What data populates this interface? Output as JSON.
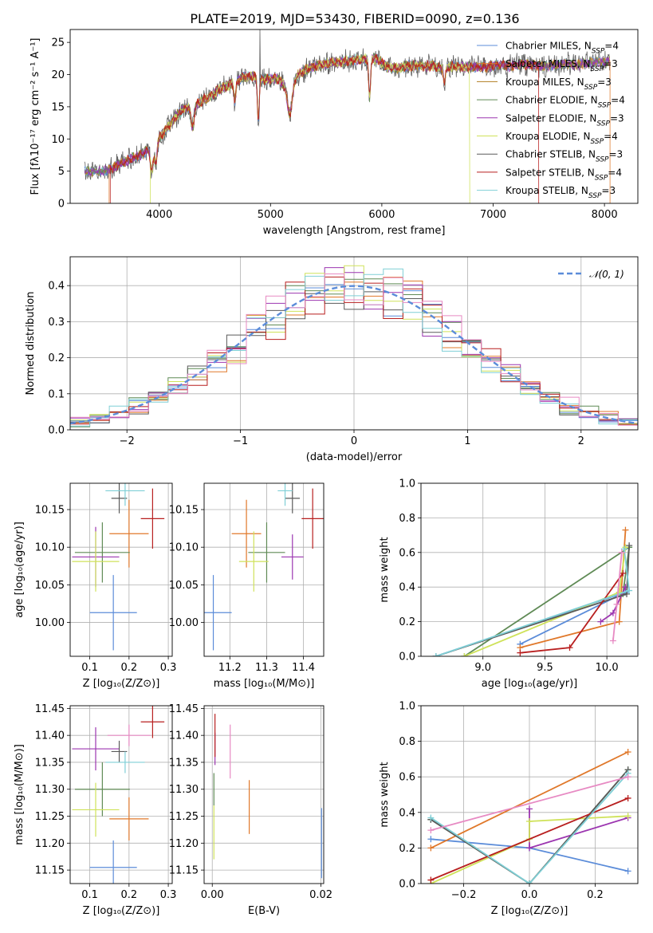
{
  "figure": {
    "title": "PLATE=2019, MJD=53430, FIBERID=0090, z=0.136"
  },
  "colors": {
    "models": [
      "#5b8cd9",
      "#e0782a",
      "#b07d20",
      "#5f8a55",
      "#9c36b0",
      "#cfe25a",
      "#5a5a5a",
      "#b81f1f",
      "#7fcfd6"
    ],
    "extra": [
      "#e78ac3"
    ],
    "grid": "#b0b0b0",
    "gauss": "#5b8cd9"
  },
  "chart_data": [
    {
      "id": "spectrum",
      "type": "line",
      "xlabel": "wavelength [Angstrom, rest frame]",
      "ylabel": "Flux [fλ10⁻¹⁷ erg cm⁻² s⁻¹ A⁻¹]",
      "xlim": [
        3200,
        8300
      ],
      "ylim": [
        0,
        27
      ],
      "xticks": [
        4000,
        5000,
        6000,
        7000,
        8000
      ],
      "yticks": [
        0,
        5,
        10,
        15,
        20,
        25
      ],
      "grid": false,
      "legend_position": "top-right",
      "series": [
        {
          "name": "Chabrier MILES, N_SSP=4"
        },
        {
          "name": "Salpeter MILES, N_SSP=3"
        },
        {
          "name": "Kroupa MILES, N_SSP=3"
        },
        {
          "name": "Chabrier ELODIE, N_SSP=4"
        },
        {
          "name": "Salpeter ELODIE, N_SSP=3"
        },
        {
          "name": "Kroupa ELODIE, N_SSP=4"
        },
        {
          "name": "Chabrier STELIB, N_SSP=3"
        },
        {
          "name": "Salpeter STELIB, N_SSP=4"
        },
        {
          "name": "Kroupa STELIB, N_SSP=3"
        }
      ],
      "continuum": {
        "wavelength": [
          3330,
          3450,
          3550,
          3650,
          3750,
          3850,
          3950,
          4050,
          4150,
          4250,
          4350,
          4450,
          4550,
          4650,
          4750,
          4850,
          4950,
          5050,
          5150,
          5250,
          5350,
          5450,
          5550,
          5650,
          5750,
          5850,
          5950,
          6050,
          6150,
          6250,
          6350,
          6450,
          6550,
          6650,
          6750,
          6850,
          6950,
          7050,
          7150,
          7250,
          7350,
          7450,
          7550,
          7650,
          7750,
          7850,
          7950,
          8050
        ],
        "flux": [
          5.0,
          4.8,
          5.3,
          6.0,
          7.0,
          7.6,
          9.0,
          11.2,
          13.5,
          15.0,
          15.6,
          16.5,
          17.8,
          18.5,
          19.5,
          19.8,
          19.2,
          19.5,
          18.0,
          20.0,
          21.0,
          21.5,
          21.8,
          22.0,
          22.3,
          22.4,
          22.5,
          21.2,
          21.0,
          21.4,
          21.3,
          21.4,
          21.0,
          21.3,
          21.2,
          21.2,
          21.2,
          21.5,
          21.3,
          21.6,
          21.5,
          21.3,
          21.4,
          21.7,
          21.5,
          21.8,
          21.9,
          22.0
        ]
      }
    },
    {
      "id": "residuals",
      "type": "line",
      "xlabel": "(data-model)/error",
      "ylabel": "Normed distribution",
      "xlim": [
        -2.5,
        2.5
      ],
      "ylim": [
        0,
        0.48
      ],
      "xticks": [
        -2,
        -1,
        0,
        1,
        2
      ],
      "yticks": [
        0.0,
        0.1,
        0.2,
        0.3,
        0.4
      ],
      "grid": true,
      "legend_position": "top-right",
      "series": [
        {
          "name": "𝒩(0, 1)",
          "style": "dashed",
          "function": "standard-normal"
        }
      ]
    },
    {
      "id": "age-vs-Z",
      "type": "scatter",
      "xlabel": "Z [log₁₀(Z/Z⊙)]",
      "ylabel": "age  [log₁₀(age/yr)]",
      "xlim": [
        0.05,
        0.31
      ],
      "ylim": [
        9.955,
        10.185
      ],
      "xticks": [
        0.1,
        0.2,
        0.3
      ],
      "yticks": [
        10.0,
        10.05,
        10.1,
        10.15
      ],
      "grid": true,
      "points": [
        {
          "x": 0.16,
          "xerr": 0.06,
          "y": 10.013,
          "yerr": 0.05,
          "color": 0
        },
        {
          "x": 0.2,
          "xerr": 0.05,
          "y": 10.118,
          "yerr": 0.045,
          "color": 1
        },
        {
          "x": 0.132,
          "xerr": 0.07,
          "y": 10.093,
          "yerr": 0.04,
          "color": 3
        },
        {
          "x": 0.115,
          "xerr": 0.06,
          "y": 10.087,
          "yerr": 0.04,
          "color": 4
        },
        {
          "x": 0.115,
          "xerr": 0.06,
          "y": 10.081,
          "yerr": 0.04,
          "color": 5
        },
        {
          "x": 0.175,
          "xerr": 0.02,
          "y": 10.165,
          "yerr": 0.02,
          "color": 6
        },
        {
          "x": 0.26,
          "xerr": 0.03,
          "y": 10.138,
          "yerr": 0.04,
          "color": 7
        },
        {
          "x": 0.19,
          "xerr": 0.05,
          "y": 10.175,
          "yerr": 0.02,
          "color": 8
        }
      ]
    },
    {
      "id": "age-vs-mass",
      "type": "scatter",
      "xlabel": "mass [log₁₀(M/M⊙)]",
      "ylabel": "",
      "xlim": [
        11.13,
        11.455
      ],
      "ylim": [
        9.955,
        10.185
      ],
      "xticks": [
        11.2,
        11.3,
        11.4
      ],
      "yticks": [
        10.0,
        10.05,
        10.1,
        10.15
      ],
      "grid": true,
      "points": [
        {
          "x": 11.155,
          "xerr": 0.05,
          "y": 10.013,
          "yerr": 0.05,
          "color": 0
        },
        {
          "x": 11.245,
          "xerr": 0.04,
          "y": 10.118,
          "yerr": 0.045,
          "color": 1
        },
        {
          "x": 11.3,
          "xerr": 0.05,
          "y": 10.093,
          "yerr": 0.04,
          "color": 3
        },
        {
          "x": 11.37,
          "xerr": 0.03,
          "y": 10.087,
          "yerr": 0.03,
          "color": 4
        },
        {
          "x": 11.265,
          "xerr": 0.04,
          "y": 10.081,
          "yerr": 0.04,
          "color": 5
        },
        {
          "x": 11.37,
          "xerr": 0.02,
          "y": 10.165,
          "yerr": 0.02,
          "color": 6
        },
        {
          "x": 11.425,
          "xerr": 0.03,
          "y": 10.138,
          "yerr": 0.04,
          "color": 7
        },
        {
          "x": 11.35,
          "xerr": 0.02,
          "y": 10.175,
          "yerr": 0.02,
          "color": 8
        }
      ]
    },
    {
      "id": "weight-vs-age",
      "type": "line",
      "xlabel": "age  [log₁₀(age/yr)]",
      "ylabel": "mass weight",
      "xlim": [
        8.5,
        10.25
      ],
      "ylim": [
        0,
        1.0
      ],
      "xticks": [
        9.0,
        9.5,
        10.0
      ],
      "yticks": [
        0.0,
        0.2,
        0.4,
        0.6,
        0.8,
        1.0
      ],
      "grid": true,
      "series": [
        {
          "color": 0,
          "x": [
            8.62,
            10.15,
            9.3
          ],
          "y": [
            0.0,
            0.37,
            0.07
          ]
        },
        {
          "color": 1,
          "x": [
            9.3,
            10.1,
            10.15
          ],
          "y": [
            0.05,
            0.2,
            0.73
          ]
        },
        {
          "color": 3,
          "x": [
            8.85,
            10.18,
            10.13
          ],
          "y": [
            0.0,
            0.63,
            0.36
          ]
        },
        {
          "color": 4,
          "x": [
            9.95,
            10.05,
            10.15
          ],
          "y": [
            0.2,
            0.25,
            0.4
          ]
        },
        {
          "color": 5,
          "x": [
            8.85,
            10.1,
            10.15
          ],
          "y": [
            0.0,
            0.37,
            0.63
          ]
        },
        {
          "color": 6,
          "x": [
            8.62,
            10.16,
            10.18
          ],
          "y": [
            0.0,
            0.36,
            0.64
          ]
        },
        {
          "color": 7,
          "x": [
            9.3,
            9.7,
            10.13
          ],
          "y": [
            0.02,
            0.05,
            0.48
          ]
        },
        {
          "color": 8,
          "x": [
            8.62,
            10.18,
            10.14
          ],
          "y": [
            0.0,
            0.38,
            0.62
          ]
        },
        {
          "color": 9,
          "x": [
            10.05,
            10.08,
            10.12
          ],
          "y": [
            0.09,
            0.3,
            0.6
          ]
        }
      ]
    },
    {
      "id": "mass-vs-Z",
      "type": "scatter",
      "xlabel": "Z [log₁₀(Z/Z⊙)]",
      "ylabel": "mass [log₁₀(M/M⊙)]",
      "xlim": [
        0.05,
        0.31
      ],
      "ylim": [
        11.125,
        11.455
      ],
      "xticks": [
        0.1,
        0.2,
        0.3
      ],
      "yticks": [
        11.15,
        11.2,
        11.25,
        11.3,
        11.35,
        11.4,
        11.45
      ],
      "grid": true,
      "points": [
        {
          "x": 0.16,
          "xerr": 0.06,
          "y": 11.155,
          "yerr": 0.05,
          "color": 0
        },
        {
          "x": 0.2,
          "xerr": 0.05,
          "y": 11.245,
          "yerr": 0.04,
          "color": 1
        },
        {
          "x": 0.132,
          "xerr": 0.07,
          "y": 11.3,
          "yerr": 0.05,
          "color": 3
        },
        {
          "x": 0.115,
          "xerr": 0.06,
          "y": 11.375,
          "yerr": 0.04,
          "color": 4
        },
        {
          "x": 0.115,
          "xerr": 0.06,
          "y": 11.262,
          "yerr": 0.05,
          "color": 5
        },
        {
          "x": 0.175,
          "xerr": 0.02,
          "y": 11.37,
          "yerr": 0.02,
          "color": 6
        },
        {
          "x": 0.26,
          "xerr": 0.03,
          "y": 11.425,
          "yerr": 0.03,
          "color": 7
        },
        {
          "x": 0.19,
          "xerr": 0.05,
          "y": 11.35,
          "yerr": 0.02,
          "color": 8
        },
        {
          "x": 0.2,
          "xerr": 0.055,
          "y": 11.4,
          "yerr": 0.02,
          "color": 9
        }
      ]
    },
    {
      "id": "mass-vs-ebv",
      "type": "scatter",
      "xlabel": "E(B-V)",
      "ylabel": "",
      "xlim": [
        -0.0015,
        0.0205
      ],
      "ylim": [
        11.125,
        11.455
      ],
      "xticks": [
        0.0,
        0.02
      ],
      "yticks": [
        11.15,
        11.2,
        11.25,
        11.3,
        11.35,
        11.4,
        11.45
      ],
      "grid": true,
      "points": [
        {
          "x": 0.0201,
          "xerr": 0.0,
          "y": 11.2,
          "yerr": 0.065,
          "color": 0
        },
        {
          "x": 0.0068,
          "xerr": 0.0,
          "y": 11.267,
          "yerr": 0.05,
          "color": 1
        },
        {
          "x": 0.0003,
          "xerr": 0.0,
          "y": 11.3,
          "yerr": 0.03,
          "color": 3
        },
        {
          "x": 0.0005,
          "xerr": 0.0,
          "y": 11.375,
          "yerr": 0.03,
          "color": 4
        },
        {
          "x": 0.0003,
          "xerr": 0.0,
          "y": 11.22,
          "yerr": 0.05,
          "color": 5
        },
        {
          "x": 0.0005,
          "xerr": 0.0,
          "y": 11.4,
          "yerr": 0.04,
          "color": 7
        },
        {
          "x": 0.0033,
          "xerr": 0.0,
          "y": 11.37,
          "yerr": 0.05,
          "color": 9
        }
      ]
    },
    {
      "id": "weight-vs-Z",
      "type": "line",
      "xlabel": "Z [log₁₀(Z/Z⊙)]",
      "ylabel": "mass weight",
      "xlim": [
        -0.33,
        0.33
      ],
      "ylim": [
        0,
        1.0
      ],
      "xticks": [
        -0.2,
        0.0,
        0.2
      ],
      "yticks": [
        0.0,
        0.2,
        0.4,
        0.6,
        0.8,
        1.0
      ],
      "grid": true,
      "series": [
        {
          "color": 0,
          "x": [
            -0.3,
            0.0,
            0.3
          ],
          "y": [
            0.25,
            0.2,
            0.07
          ]
        },
        {
          "color": 1,
          "x": [
            -0.3,
            0.3
          ],
          "y": [
            0.2,
            0.74
          ]
        },
        {
          "color": 3,
          "x": [
            -0.3,
            0.0,
            0.3
          ],
          "y": [
            0.36,
            0.0,
            0.64
          ]
        },
        {
          "color": 4,
          "x": [
            0.0,
            0.0,
            0.3
          ],
          "y": [
            0.42,
            0.2,
            0.37
          ]
        },
        {
          "color": 5,
          "x": [
            -0.3,
            0.0,
            0.0,
            0.3
          ],
          "y": [
            0.0,
            0.25,
            0.35,
            0.38
          ]
        },
        {
          "color": 6,
          "x": [
            -0.3,
            0.0,
            0.3
          ],
          "y": [
            0.36,
            0.0,
            0.64
          ]
        },
        {
          "color": 7,
          "x": [
            -0.3,
            0.3
          ],
          "y": [
            0.02,
            0.48
          ]
        },
        {
          "color": 8,
          "x": [
            -0.3,
            0.0,
            0.3
          ],
          "y": [
            0.37,
            0.0,
            0.62
          ]
        },
        {
          "color": 9,
          "x": [
            -0.3,
            0.3
          ],
          "y": [
            0.3,
            0.6
          ]
        }
      ]
    }
  ]
}
